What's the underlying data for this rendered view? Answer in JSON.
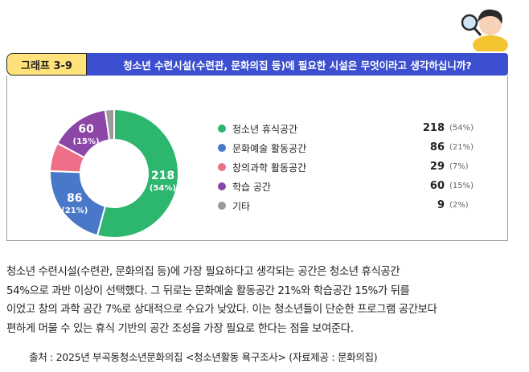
{
  "header": {
    "graph_label": "그래프 3-9",
    "title": "청소년 수련시설(수련관, 문화의집 등)에 필요한 시설은 무엇이라고 생각하십니까?"
  },
  "chart_data": {
    "type": "pie",
    "style": "donut",
    "slices": [
      {
        "label": "청소년 휴식공간",
        "value": 218,
        "percent": "(54%)",
        "color": "#2db66e"
      },
      {
        "label": "문화예술 활동공간",
        "value": 86,
        "percent": "(21%)",
        "color": "#4a78c9"
      },
      {
        "label": "창의과학 활동공간",
        "value": 29,
        "percent": "(7%)",
        "color": "#ef6f88"
      },
      {
        "label": "학습 공간",
        "value": 60,
        "percent": "(15%)",
        "color": "#8b46a7"
      },
      {
        "label": "기타",
        "value": 9,
        "percent": "(2%)",
        "color": "#9b9b9b"
      }
    ],
    "slice_labels": [
      {
        "value": "218",
        "percent": "(54%)"
      },
      {
        "value": "86",
        "percent": "(21%)"
      },
      {
        "value": "60",
        "percent": "(15%)"
      }
    ]
  },
  "body": {
    "lines": [
      "청소년 수련시설(수련관, 문화의집 등)에 가장 필요하다고 생각되는 공간은 청소년 휴식공간",
      "54%으로 과반 이상이 선택했다. 그 뒤로는 문화예술 활동공간 21%와 학습공간 15%가 뒤를",
      "이었고 창의 과학 공간 7%로 상대적으로 수요가 낮았다. 이는 청소년들이 단순한 프로그램 공간보다",
      "편하게 머물 수 있는 휴식 기반의 공간 조성을 가장 필요로 한다는 점을 보여준다."
    ]
  },
  "source": "출처 : 2025년 부곡동청소년문화의집 <청소년활동 욕구조사> (자료제공 : 문화의집)",
  "mascot_icon": "magnifier-character-icon"
}
